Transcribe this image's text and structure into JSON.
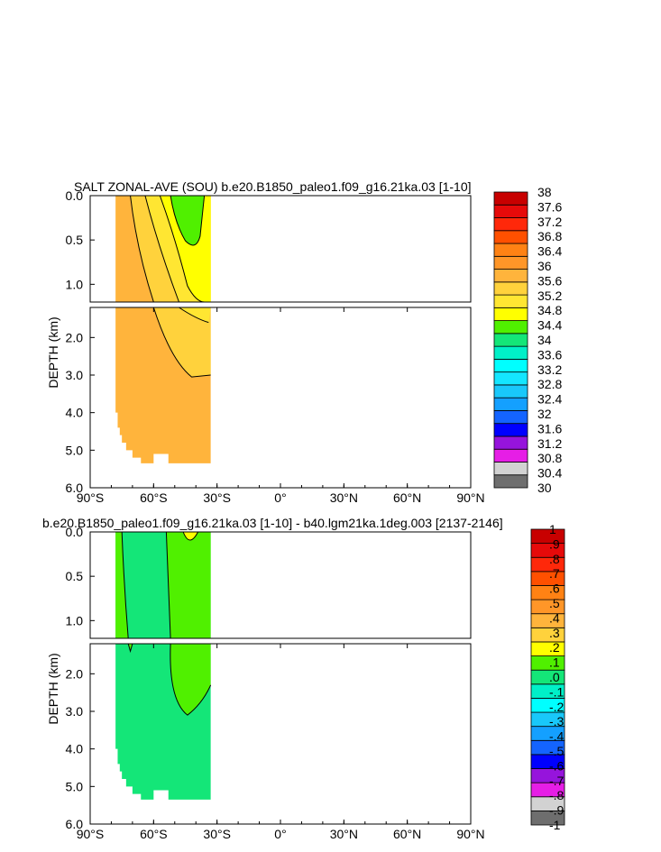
{
  "palettes": {
    "main": [
      "#6e6e6e",
      "#d2d2d2",
      "#e61ee6",
      "#9614dc",
      "#0000ff",
      "#1464ff",
      "#14a0ff",
      "#19c8fa",
      "#14e6ff",
      "#00ffff",
      "#00f0c8",
      "#14e678",
      "#50f000",
      "#ffff00",
      "#ffe632",
      "#ffd23c",
      "#ffb43c",
      "#ff9628",
      "#ff8214",
      "#ff5000",
      "#ff280a",
      "#e60a0a",
      "#c80000"
    ],
    "diff": [
      "#6e6e6e",
      "#d2d2d2",
      "#e61ee6",
      "#9614dc",
      "#0000ff",
      "#1464ff",
      "#14a0ff",
      "#19c8fa",
      "#00ffff",
      "#00f0c8",
      "#14e678",
      "#50f000",
      "#ffff00",
      "#ffd23c",
      "#ffb43c",
      "#ff9628",
      "#ff8214",
      "#ff5000",
      "#ff280a",
      "#e60a0a",
      "#c80000"
    ]
  },
  "chart_data": [
    {
      "type": "heatmap",
      "subtype": "filled-contour depth-latitude section (zonal average)",
      "title": "SALT ZONAL-AVE (SOU) b.e20.B1850_paleo1.f09_g16.21ka.03 [1-10]",
      "ylabel": "DEPTH (km)",
      "xlabel": "",
      "x_ticks": [
        "90°S",
        "60°S",
        "30°S",
        "0°",
        "30°N",
        "60°N",
        "90°N"
      ],
      "xlim": [
        -90,
        90
      ],
      "y_ticks_upper": [
        "0.0",
        "0.5",
        "1.0"
      ],
      "y_ticks_lower": [
        "2.0",
        "3.0",
        "4.0",
        "5.0",
        "6.0"
      ],
      "ylim_upper": [
        0,
        1.2
      ],
      "ylim_lower": [
        1.2,
        6.0
      ],
      "colorbar_labels": [
        "38",
        "37.6",
        "37.2",
        "36.8",
        "36.4",
        "36",
        "35.6",
        "35.2",
        "34.8",
        "34.4",
        "34",
        "33.6",
        "33.2",
        "32.8",
        "32.4",
        "32",
        "31.6",
        "31.2",
        "30.8",
        "30.4",
        "30"
      ],
      "colorbar_levels": [
        30,
        30.4,
        30.8,
        31.2,
        31.6,
        32,
        32.4,
        32.8,
        33.2,
        33.6,
        34,
        34.4,
        34.8,
        35.2,
        35.6,
        36,
        36.4,
        36.8,
        37.2,
        37.6,
        38
      ],
      "data_lat_range": [
        -78,
        -33
      ],
      "regions": [
        {
          "value": 36.2,
          "description": "deep and western water, 36.0-36.4"
        },
        {
          "value": 35.8,
          "description": "35.6-36.0 band"
        },
        {
          "value": 35.4,
          "description": "35.2-35.6 band"
        },
        {
          "value": 35.0,
          "description": "34.8-35.2 band near 30S"
        },
        {
          "value": 34.6,
          "description": "34.4-34.8 low-salinity tongue at surface ~45S"
        }
      ]
    },
    {
      "type": "heatmap",
      "subtype": "filled-contour depth-latitude section (difference)",
      "title": "b.e20.B1850_paleo1.f09_g16.21ka.03 [1-10] - b40.lgm21ka.1deg.003 [2137-2146]",
      "ylabel": "DEPTH (km)",
      "xlabel": "",
      "x_ticks": [
        "90°S",
        "60°S",
        "30°S",
        "0°",
        "30°N",
        "60°N",
        "90°N"
      ],
      "xlim": [
        -90,
        90
      ],
      "y_ticks_upper": [
        "0.0",
        "0.5",
        "1.0"
      ],
      "y_ticks_lower": [
        "2.0",
        "3.0",
        "4.0",
        "5.0",
        "6.0"
      ],
      "ylim_upper": [
        0,
        1.2
      ],
      "ylim_lower": [
        1.2,
        6.0
      ],
      "colorbar_labels": [
        "1",
        ".9",
        ".8",
        ".7",
        ".6",
        ".5",
        ".4",
        ".3",
        ".2",
        ".1",
        ".0",
        "-.1",
        "-.2",
        "-.3",
        "-.4",
        "-.5",
        "-.6",
        "-.7",
        "-.8",
        "-.9",
        "-1"
      ],
      "colorbar_levels": [
        -1,
        -0.9,
        -0.8,
        -0.7,
        -0.6,
        -0.5,
        -0.4,
        -0.3,
        -0.2,
        -0.1,
        0,
        0.1,
        0.2,
        0.3,
        0.4,
        0.5,
        0.6,
        0.7,
        0.8,
        0.9,
        1
      ],
      "data_lat_range": [
        -78,
        -33
      ],
      "regions": [
        {
          "value": -0.05,
          "description": "most of section, -0.1 to 0"
        },
        {
          "value": 0.05,
          "description": "positive anomaly 0 to 0.1 between ~55S and 33S, and thin strip at ~75S"
        },
        {
          "value": 0.15,
          "description": "small 0.1-0.2 patch at surface near 42S"
        }
      ]
    }
  ]
}
